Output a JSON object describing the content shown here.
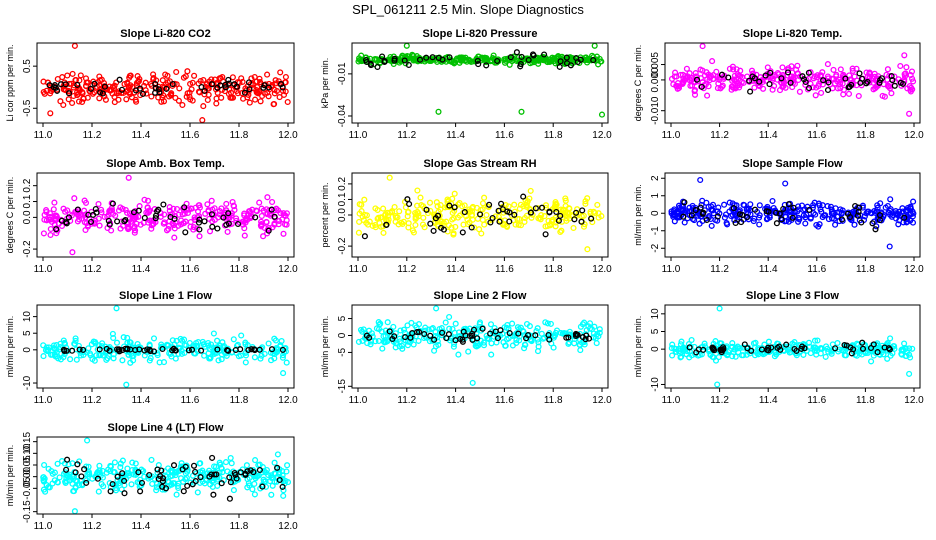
{
  "figure_title": "SPL_061211  2.5 Min. Slope Diagnostics",
  "chart_data": [
    {
      "id": "co2",
      "type": "scatter",
      "title": "Slope Li-820 CO2",
      "ylabel": "Li cor ppm per min.",
      "xlim": [
        11.0,
        12.0
      ],
      "ylim": [
        -0.85,
        1.05
      ],
      "x_ticks": [
        "11.0",
        "11.2",
        "11.4",
        "11.6",
        "11.8",
        "12.0"
      ],
      "y_ticks": [
        {
          "v": -0.5,
          "t": "-0.5"
        },
        {
          "v": 0.5,
          "t": "0.5"
        }
      ],
      "color": "#ff0000",
      "series_spec": {
        "center": 0.0,
        "spread": 0.25,
        "count": 300,
        "black_count": 45,
        "black_spread": 0.12
      },
      "outliers": [
        {
          "x": 11.13,
          "y": 0.98
        },
        {
          "x": 11.65,
          "y": -0.78
        },
        {
          "x": 11.03,
          "y": -0.62
        }
      ]
    },
    {
      "id": "pressure",
      "type": "scatter",
      "title": "Slope Li-820 Pressure",
      "ylabel": "kPa per min.",
      "xlim": [
        11.0,
        12.0
      ],
      "ylim": [
        -0.045,
        0.012
      ],
      "x_ticks": [
        "11.0",
        "11.2",
        "11.4",
        "11.6",
        "11.8",
        "12.0"
      ],
      "y_ticks": [
        {
          "v": -0.04,
          "t": "-0.04"
        },
        {
          "v": -0.01,
          "t": "-0.01"
        }
      ],
      "color": "#00c000",
      "series_spec": {
        "center": 0.0,
        "spread": 0.002,
        "count": 320,
        "black_count": 40,
        "black_spread": 0.004
      },
      "outliers": [
        {
          "x": 11.33,
          "y": -0.037
        },
        {
          "x": 11.67,
          "y": -0.037
        },
        {
          "x": 12.0,
          "y": -0.039
        },
        {
          "x": 11.2,
          "y": 0.01
        },
        {
          "x": 11.97,
          "y": 0.01
        }
      ]
    },
    {
      "id": "temp",
      "type": "scatter",
      "title": "Slope Li-820 Temp.",
      "ylabel": "degrees C per min.",
      "xlim": [
        11.0,
        12.0
      ],
      "ylim": [
        -0.014,
        0.012
      ],
      "x_ticks": [
        "11.0",
        "11.2",
        "11.4",
        "11.6",
        "11.8",
        "12.0"
      ],
      "y_ticks": [
        {
          "v": -0.01,
          "t": "-0.010"
        },
        {
          "v": 0.0,
          "t": "0.000"
        },
        {
          "v": 0.005,
          "t": "0.005"
        }
      ],
      "color": "#ff00ff",
      "series_spec": {
        "center": 0.0,
        "spread": 0.003,
        "count": 300,
        "black_count": 40,
        "black_spread": 0.002
      },
      "outliers": [
        {
          "x": 11.13,
          "y": 0.011
        },
        {
          "x": 11.98,
          "y": -0.011
        },
        {
          "x": 11.96,
          "y": 0.008
        }
      ]
    },
    {
      "id": "boxtemp",
      "type": "scatter",
      "title": "Slope Amb. Box Temp.",
      "ylabel": "degrees C per min.",
      "xlim": [
        11.0,
        12.0
      ],
      "ylim": [
        -0.25,
        0.28
      ],
      "x_ticks": [
        "11.0",
        "11.2",
        "11.4",
        "11.6",
        "11.8",
        "12.0"
      ],
      "y_ticks": [
        {
          "v": -0.2,
          "t": "-0.2"
        },
        {
          "v": 0.0,
          "t": "0.0"
        },
        {
          "v": 0.1,
          "t": "0.1"
        },
        {
          "v": 0.2,
          "t": "0.2"
        }
      ],
      "color": "#ff00ff",
      "series_spec": {
        "center": 0.0,
        "spread": 0.07,
        "count": 300,
        "black_count": 45,
        "black_spread": 0.06
      },
      "outliers": [
        {
          "x": 11.35,
          "y": 0.25
        },
        {
          "x": 11.12,
          "y": -0.22
        }
      ]
    },
    {
      "id": "rh",
      "type": "scatter",
      "title": "Slope Gas Stream RH",
      "ylabel": "percent per min.",
      "xlim": [
        11.0,
        12.0
      ],
      "ylim": [
        -0.27,
        0.27
      ],
      "x_ticks": [
        "11.0",
        "11.2",
        "11.4",
        "11.6",
        "11.8",
        "12.0"
      ],
      "y_ticks": [
        {
          "v": -0.2,
          "t": "-0.2"
        },
        {
          "v": 0.0,
          "t": "0.0"
        },
        {
          "v": 0.1,
          "t": "0.1"
        },
        {
          "v": 0.2,
          "t": "0.2"
        }
      ],
      "color": "#ffff00",
      "series_spec": {
        "center": 0.0,
        "spread": 0.08,
        "count": 280,
        "black_count": 45,
        "black_spread": 0.07
      },
      "outliers": [
        {
          "x": 11.13,
          "y": 0.24
        },
        {
          "x": 11.94,
          "y": -0.22
        }
      ]
    },
    {
      "id": "sampleflow",
      "type": "scatter",
      "title": "Slope Sample Flow",
      "ylabel": "ml/min per min.",
      "xlim": [
        11.0,
        12.0
      ],
      "ylim": [
        -2.5,
        2.3
      ],
      "x_ticks": [
        "11.0",
        "11.2",
        "11.4",
        "11.6",
        "11.8",
        "12.0"
      ],
      "y_ticks": [
        {
          "v": -2,
          "t": "-2"
        },
        {
          "v": -1,
          "t": "-1"
        },
        {
          "v": 0,
          "t": "0"
        },
        {
          "v": 1,
          "t": "1"
        },
        {
          "v": 2,
          "t": "2"
        }
      ],
      "color": "#0000ff",
      "series_spec": {
        "center": 0.0,
        "spread": 0.45,
        "count": 320,
        "black_count": 40,
        "black_spread": 0.5
      },
      "outliers": [
        {
          "x": 11.12,
          "y": 1.9
        },
        {
          "x": 11.47,
          "y": 1.7
        },
        {
          "x": 11.9,
          "y": -1.9
        }
      ]
    },
    {
      "id": "line1",
      "type": "scatter",
      "title": "Slope Line 1 Flow",
      "ylabel": "ml/min per min.",
      "xlim": [
        11.0,
        12.0
      ],
      "ylim": [
        -11.5,
        13.5
      ],
      "x_ticks": [
        "11.0",
        "11.2",
        "11.4",
        "11.6",
        "11.8",
        "12.0"
      ],
      "y_ticks": [
        {
          "v": -10,
          "t": "-10"
        },
        {
          "v": 0,
          "t": "0"
        },
        {
          "v": 5,
          "t": "5"
        },
        {
          "v": 10,
          "t": "10"
        }
      ],
      "color": "#00ffff",
      "series_spec": {
        "center": 0.0,
        "spread": 2.5,
        "count": 260,
        "black_count": 45,
        "black_spread": 0.3
      },
      "outliers": [
        {
          "x": 11.3,
          "y": 12.5
        },
        {
          "x": 11.34,
          "y": -10.5
        },
        {
          "x": 11.98,
          "y": -7.0
        }
      ]
    },
    {
      "id": "line2",
      "type": "scatter",
      "title": "Slope Line 2 Flow",
      "ylabel": "ml/min per min.",
      "xlim": [
        11.0,
        12.0
      ],
      "ylim": [
        -15.5,
        9.0
      ],
      "x_ticks": [
        "11.0",
        "11.2",
        "11.4",
        "11.6",
        "11.8",
        "12.0"
      ],
      "y_ticks": [
        {
          "v": -15,
          "t": "-15"
        },
        {
          "v": -5,
          "t": "-5"
        },
        {
          "v": 0,
          "t": "0"
        },
        {
          "v": 5,
          "t": "5"
        }
      ],
      "color": "#00ffff",
      "series_spec": {
        "center": 0.0,
        "spread": 3.0,
        "count": 280,
        "black_count": 50,
        "black_spread": 1.5
      },
      "outliers": [
        {
          "x": 11.47,
          "y": -14.0
        },
        {
          "x": 11.32,
          "y": 8.0
        }
      ]
    },
    {
      "id": "line3",
      "type": "scatter",
      "title": "Slope Line 3 Flow",
      "ylabel": "ml/min per min.",
      "xlim": [
        11.0,
        12.0
      ],
      "ylim": [
        -11.0,
        12.5
      ],
      "x_ticks": [
        "11.0",
        "11.2",
        "11.4",
        "11.6",
        "11.8",
        "12.0"
      ],
      "y_ticks": [
        {
          "v": -10,
          "t": "-10"
        },
        {
          "v": 0,
          "t": "0"
        },
        {
          "v": 5,
          "t": "5"
        },
        {
          "v": 10,
          "t": "10"
        }
      ],
      "color": "#00ffff",
      "series_spec": {
        "center": 0.0,
        "spread": 1.6,
        "count": 280,
        "black_count": 45,
        "black_spread": 0.8
      },
      "outliers": [
        {
          "x": 11.2,
          "y": 11.5
        },
        {
          "x": 11.19,
          "y": -10.0
        },
        {
          "x": 11.98,
          "y": -7.0
        }
      ]
    },
    {
      "id": "line4",
      "type": "scatter",
      "title": "Slope Line 4 (LT) Flow",
      "ylabel": "ml/min per min.",
      "xlim": [
        11.0,
        12.0
      ],
      "ylim": [
        -0.16,
        0.17
      ],
      "x_ticks": [
        "11.0",
        "11.2",
        "11.4",
        "11.6",
        "11.8",
        "12.0"
      ],
      "y_ticks": [
        {
          "v": -0.15,
          "t": "-0.15"
        },
        {
          "v": -0.05,
          "t": "-0.05"
        },
        {
          "v": 0.0,
          "t": "0.00"
        },
        {
          "v": 0.05,
          "t": "0.05"
        },
        {
          "v": 0.1,
          "t": "0.10"
        },
        {
          "v": 0.15,
          "t": "0.15"
        }
      ],
      "color": "#00ffff",
      "series_spec": {
        "center": 0.0,
        "spread": 0.045,
        "count": 320,
        "black_count": 60,
        "black_spread": 0.05
      },
      "outliers": [
        {
          "x": 11.18,
          "y": 0.155
        },
        {
          "x": 11.13,
          "y": -0.148
        }
      ]
    }
  ]
}
